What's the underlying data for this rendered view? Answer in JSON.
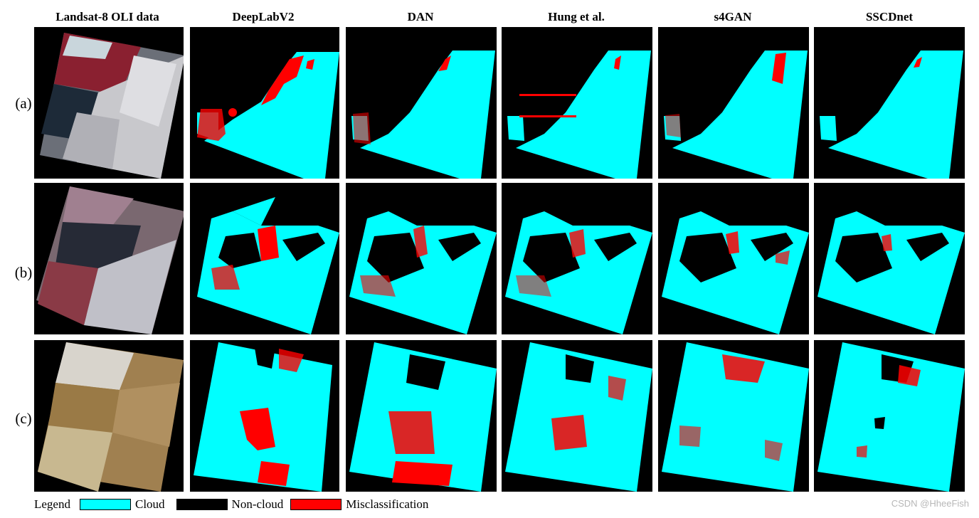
{
  "columns": [
    {
      "id": "landsat",
      "label": "Landsat-8 OLI data"
    },
    {
      "id": "deeplab",
      "label": "DeepLabV2"
    },
    {
      "id": "dan",
      "label": "DAN"
    },
    {
      "id": "hung",
      "label": "Hung et al."
    },
    {
      "id": "s4gan",
      "label": "s4GAN"
    },
    {
      "id": "sscd",
      "label": "SSCDnet"
    }
  ],
  "rows": [
    {
      "id": "a",
      "label": "(a)"
    },
    {
      "id": "b",
      "label": "(b)"
    },
    {
      "id": "c",
      "label": "(c)"
    }
  ],
  "legend": {
    "title": "Legend",
    "items": [
      {
        "label": "Cloud",
        "color": "#00ffff"
      },
      {
        "label": "Non-cloud",
        "color": "#000000"
      },
      {
        "label": "Misclassification",
        "color": "#ff0000"
      }
    ]
  },
  "watermark": "CSDN @HheeFish",
  "colors": {
    "cloud": "#00ffff",
    "noncloud": "#000000",
    "misclass": "#ff0000"
  }
}
